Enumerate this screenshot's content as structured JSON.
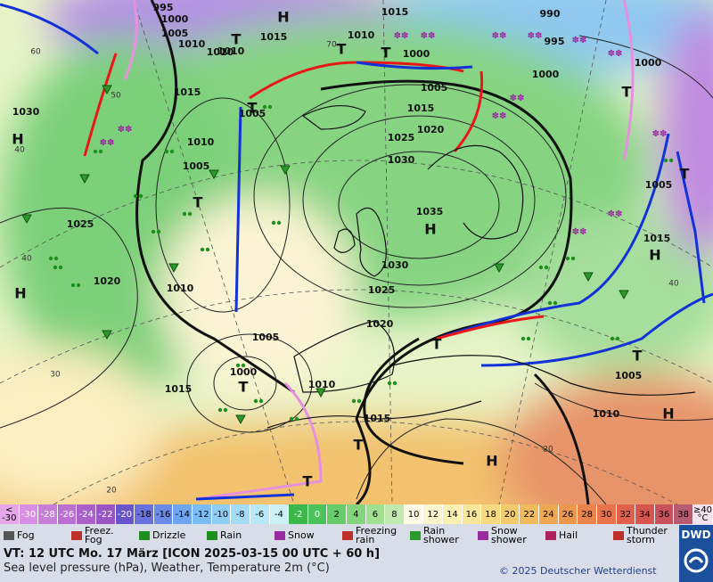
{
  "map": {
    "pressure_labels": [
      995,
      1000,
      1005,
      1010,
      1015,
      1010,
      1015,
      1010,
      1005,
      1000,
      990,
      995,
      1000,
      1000,
      1030,
      1015,
      1010,
      1005,
      1005,
      1015,
      1025,
      1020,
      1030,
      1035,
      1030,
      1025,
      1020,
      1015,
      1010,
      1005,
      1000,
      1015,
      1010,
      1015,
      1005,
      1010,
      1020,
      1025,
      1005,
      1010
    ],
    "centers": [
      "H",
      "T",
      "T",
      "T",
      "T",
      "T",
      "H",
      "H",
      "H",
      "H",
      "T",
      "T",
      "T",
      "T",
      "H",
      "T",
      "H",
      "T",
      "T"
    ],
    "latitude_labels": [
      60,
      40,
      40,
      30,
      20,
      50,
      70,
      40,
      20
    ]
  },
  "legend": {
    "temperature_scale": [
      {
        "label": "< -30",
        "color": "#e6a6ea"
      },
      {
        "label": -30,
        "color": "#d88ee2"
      },
      {
        "label": -28,
        "color": "#c97fd8"
      },
      {
        "label": -26,
        "color": "#bb6fd0"
      },
      {
        "label": -24,
        "color": "#a960c8"
      },
      {
        "label": -22,
        "color": "#9a55c4"
      },
      {
        "label": -20,
        "color": "#6a54cc"
      },
      {
        "label": -18,
        "color": "#6a70dc"
      },
      {
        "label": -16,
        "color": "#6a8ae6"
      },
      {
        "label": -14,
        "color": "#6fa4ee"
      },
      {
        "label": -12,
        "color": "#7cbcf4"
      },
      {
        "label": -10,
        "color": "#8ecef6"
      },
      {
        "label": -8,
        "color": "#a4dcf8"
      },
      {
        "label": -6,
        "color": "#b8e8f8"
      },
      {
        "label": -4,
        "color": "#ccf2f6"
      },
      {
        "label": -2,
        "color": "#3ab84a"
      },
      {
        "label": 0,
        "color": "#4cc25a"
      },
      {
        "label": 2,
        "color": "#66cc6a"
      },
      {
        "label": 4,
        "color": "#84d67c"
      },
      {
        "label": 6,
        "color": "#a0e090"
      },
      {
        "label": 8,
        "color": "#c2eab0"
      },
      {
        "label": 10,
        "color": "#fffbe6"
      },
      {
        "label": 12,
        "color": "#fdf6cc"
      },
      {
        "label": 14,
        "color": "#fbefb2"
      },
      {
        "label": 16,
        "color": "#f8e69a"
      },
      {
        "label": 18,
        "color": "#f5da82"
      },
      {
        "label": 20,
        "color": "#f2cc6c"
      },
      {
        "label": 22,
        "color": "#f0bb5c"
      },
      {
        "label": 24,
        "color": "#eea852"
      },
      {
        "label": 26,
        "color": "#ec964e"
      },
      {
        "label": 28,
        "color": "#ea844c"
      },
      {
        "label": 30,
        "color": "#e8724c"
      },
      {
        "label": 32,
        "color": "#e0604c"
      },
      {
        "label": 34,
        "color": "#d6564e"
      },
      {
        "label": 36,
        "color": "#c8525c"
      },
      {
        "label": 38,
        "color": "#b85a72"
      },
      {
        "label": "≥40 °C",
        "color": "#f4e2ee"
      }
    ],
    "weather": [
      "Fog",
      "Freez. Fog",
      "Drizzle",
      "Rain",
      "Snow",
      "Freezing rain",
      "Rain shower",
      "Snow shower",
      "Hail",
      "Thunder storm"
    ]
  },
  "footer": {
    "valid_time": "VT: 12 UTC Mo.  17 März [ICON 2025-03-15  00 UTC + 60 h]",
    "subtitle": "Sea level pressure (hPa), Weather, Temperature 2m (°C)",
    "copyright": "© 2025 Deutscher Wetterdienst",
    "logo": "DWD"
  }
}
